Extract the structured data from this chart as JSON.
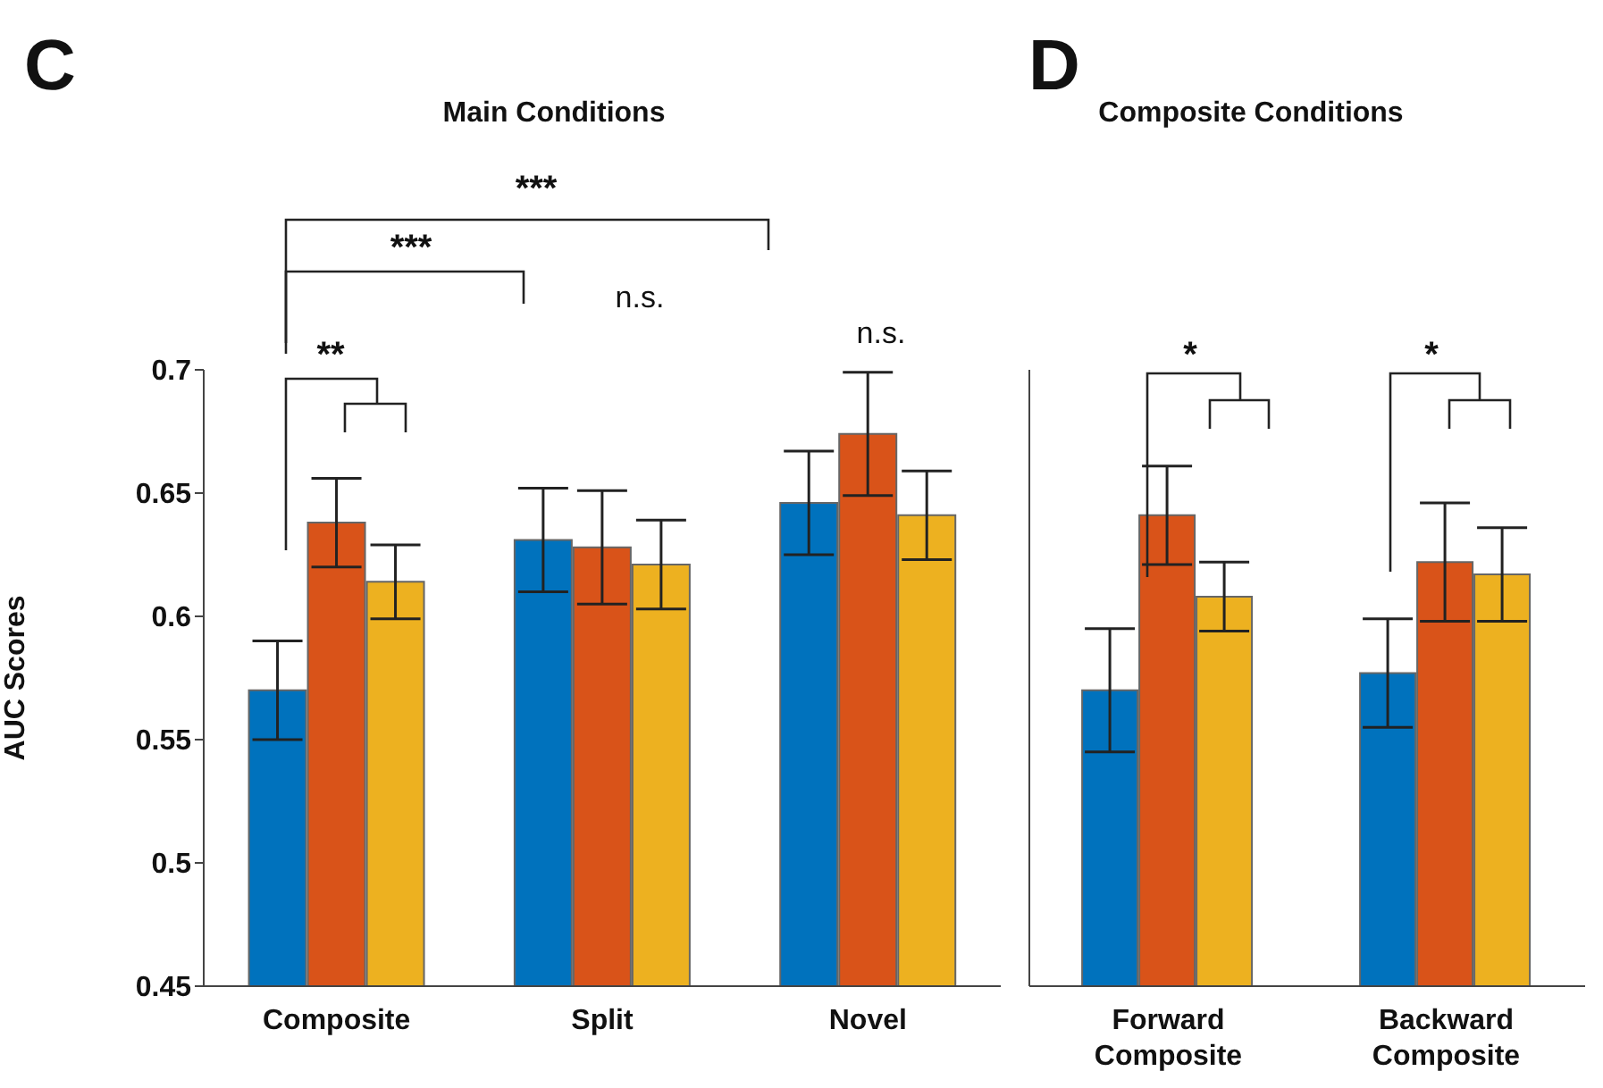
{
  "chart_data": [
    {
      "type": "bar",
      "title": "Main Conditions",
      "ylabel": "AUC Scores",
      "categories": [
        "Composite",
        "Split",
        "Novel"
      ],
      "ylim": [
        0.45,
        0.7
      ],
      "yticks": [
        0.45,
        0.5,
        0.55,
        0.6,
        0.65,
        0.7
      ],
      "grid": false,
      "series": [
        {
          "color": "#0072bd",
          "values": [
            0.57,
            0.631,
            0.646
          ],
          "errors": [
            0.02,
            0.021,
            0.021
          ]
        },
        {
          "color": "#d95319",
          "values": [
            0.638,
            0.628,
            0.674
          ],
          "errors": [
            0.018,
            0.023,
            0.025
          ]
        },
        {
          "color": "#edb120",
          "values": [
            0.614,
            0.621,
            0.641
          ],
          "errors": [
            0.015,
            0.018,
            0.018
          ]
        }
      ],
      "annotations": [
        "C",
        "***",
        "***",
        "**",
        "n.s.",
        "n.s."
      ]
    },
    {
      "type": "bar",
      "title": "Composite Conditions",
      "categories": [
        "Forward Composite",
        "Backward Composite"
      ],
      "ylim": [
        0.45,
        0.7
      ],
      "yticks": [
        0.45,
        0.5,
        0.55,
        0.6,
        0.65,
        0.7
      ],
      "grid": false,
      "tick_labels": "x",
      "series": [
        {
          "color": "#0072bd",
          "values": [
            0.57,
            0.577
          ],
          "errors": [
            0.025,
            0.022
          ]
        },
        {
          "color": "#d95319",
          "values": [
            0.641,
            0.622
          ],
          "errors": [
            0.02,
            0.024
          ]
        },
        {
          "color": "#edb120",
          "values": [
            0.608,
            0.617
          ],
          "errors": [
            0.014,
            0.019
          ]
        }
      ],
      "annotations": [
        "D",
        "*",
        "*"
      ]
    }
  ]
}
